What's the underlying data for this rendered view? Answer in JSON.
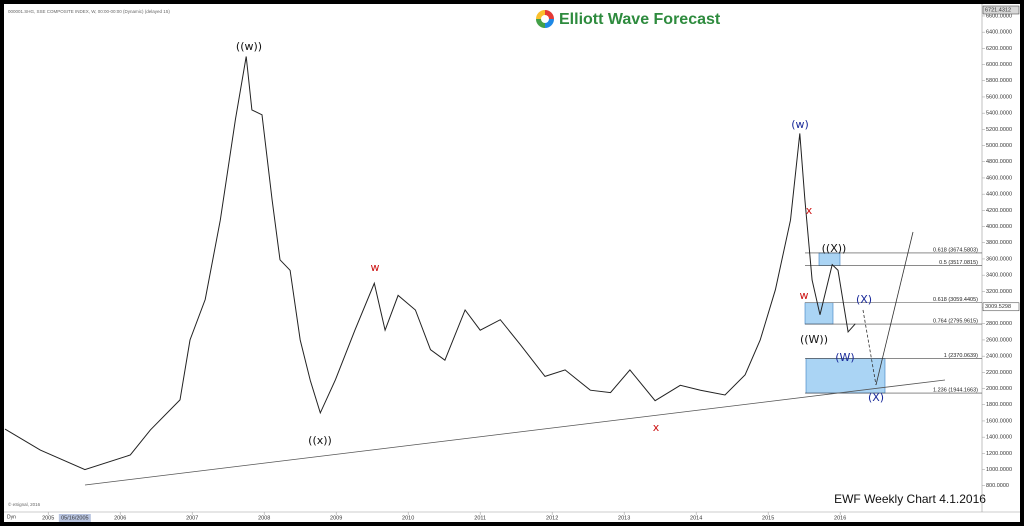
{
  "chart_data": {
    "type": "line",
    "title": "Elliott Wave Forecast",
    "subtitle": "EWF Weekly Chart 4.1.2016",
    "header": "000001.SHG, SSE COMPOSITE INDEX, W, 00:00-00:00 (Dynamic) (delayed 15)",
    "credit": "© eSignal, 2016",
    "mode": "Dyn",
    "x_cursor": {
      "value": 2005.37,
      "label": "05/16/2005"
    },
    "x": [
      2004.4,
      2004.89,
      2005.51,
      2006.14,
      2006.42,
      2006.83,
      2006.97,
      2007.18,
      2007.39,
      2007.6,
      2007.75,
      2007.83,
      2007.97,
      2008.11,
      2008.22,
      2008.36,
      2008.5,
      2008.64,
      2008.78,
      2008.99,
      2009.26,
      2009.53,
      2009.68,
      2009.86,
      2010.1,
      2010.31,
      2010.51,
      2010.79,
      2011.0,
      2011.28,
      2011.56,
      2011.9,
      2012.18,
      2012.53,
      2012.81,
      2013.08,
      2013.43,
      2013.78,
      2014.06,
      2014.4,
      2014.68,
      2014.89,
      2015.1,
      2015.31,
      2015.44,
      2015.51,
      2015.61,
      2015.72,
      2015.89,
      2015.97,
      2016.11,
      2016.21
    ],
    "series": [
      {
        "name": "000001.SHG",
        "color": "#222222",
        "values": [
          1500,
          1240,
          1000,
          1180,
          1490,
          1860,
          2600,
          3100,
          4080,
          5320,
          6100,
          5440,
          5380,
          4330,
          3590,
          3460,
          2600,
          2100,
          1700,
          2110,
          2720,
          3300,
          2720,
          3150,
          2970,
          2480,
          2350,
          2970,
          2720,
          2850,
          2540,
          2150,
          2230,
          1980,
          1950,
          2230,
          1850,
          2040,
          1980,
          1920,
          2170,
          2600,
          3220,
          4080,
          5150,
          4330,
          3340,
          2910,
          3530,
          3460,
          2700,
          2800
        ]
      }
    ],
    "xlim": [
      2004.4,
      2017.97
    ],
    "ylim": [
      476,
      6723
    ],
    "xticks": [
      2005,
      2006,
      2007,
      2008,
      2009,
      2010,
      2011,
      2012,
      2013,
      2014,
      2015,
      2016
    ],
    "yticks": [
      {
        "value": 800,
        "label": "800.0000"
      },
      {
        "value": 1000,
        "label": "1000.0000"
      },
      {
        "value": 1200,
        "label": "1200.0000"
      },
      {
        "value": 1400,
        "label": "1400.0000"
      },
      {
        "value": 1600,
        "label": "1600.0000"
      },
      {
        "value": 1800,
        "label": "1800.0000"
      },
      {
        "value": 2000,
        "label": "2000.0000"
      },
      {
        "value": 2200,
        "label": "2200.0000"
      },
      {
        "value": 2400,
        "label": "2400.0000"
      },
      {
        "value": 2600,
        "label": "2600.0000"
      },
      {
        "value": 2800,
        "label": "2800.0000"
      },
      {
        "value": 3000,
        "label": "3000.0000"
      },
      {
        "value": 3200,
        "label": "3200.0000"
      },
      {
        "value": 3400,
        "label": "3400.0000"
      },
      {
        "value": 3600,
        "label": "3600.0000"
      },
      {
        "value": 3800,
        "label": "3800.0000"
      },
      {
        "value": 4000,
        "label": "4000.0000"
      },
      {
        "value": 4200,
        "label": "4200.0000"
      },
      {
        "value": 4400,
        "label": "4400.0000"
      },
      {
        "value": 4600,
        "label": "4600.0000"
      },
      {
        "value": 4800,
        "label": "4800.0000"
      },
      {
        "value": 5000,
        "label": "5000.0000"
      },
      {
        "value": 5200,
        "label": "5200.0000"
      },
      {
        "value": 5400,
        "label": "5400.0000"
      },
      {
        "value": 5600,
        "label": "5600.0000"
      },
      {
        "value": 5800,
        "label": "5800.0000"
      },
      {
        "value": 6000,
        "label": "6000.0000"
      },
      {
        "value": 6200,
        "label": "6200.0000"
      },
      {
        "value": 6400,
        "label": "6400.0000"
      },
      {
        "value": 6600,
        "label": "6600.0000"
      }
    ],
    "axis_markers": [
      6721.4312,
      3009.5298
    ],
    "fib_levels": [
      {
        "value": 3674.5803,
        "label": "0.618 (3674.5803)"
      },
      {
        "value": 3517.0815,
        "label": "0.5 (3517.0815)"
      },
      {
        "value": 3059.4405,
        "label": "0.618 (3059.4405)"
      },
      {
        "value": 2795.9615,
        "label": "0.764 (2795.9615)"
      },
      {
        "value": 2370.0639,
        "label": "1 (2370.0639)"
      },
      {
        "value": 1944.1663,
        "label": "1.236 (1944.1663)"
      }
    ],
    "wave_labels": [
      {
        "text": "((w))",
        "color": "#111111"
      },
      {
        "text": "((x))",
        "color": "#111111"
      },
      {
        "text": "w",
        "color": "#cc1111"
      },
      {
        "text": "x",
        "color": "#cc1111"
      },
      {
        "text": "(w)",
        "color": "#1a2a9a"
      },
      {
        "text": "x",
        "color": "#cc1111"
      },
      {
        "text": "((X))",
        "color": "#111111"
      },
      {
        "text": "w",
        "color": "#cc1111"
      },
      {
        "text": "((W))",
        "color": "#111111"
      },
      {
        "text": "(X)",
        "color": "#1a2a9a"
      },
      {
        "text": "(W)",
        "color": "#1a2a9a"
      },
      {
        "text": "(X)",
        "color": "#1a2a9a"
      }
    ]
  }
}
